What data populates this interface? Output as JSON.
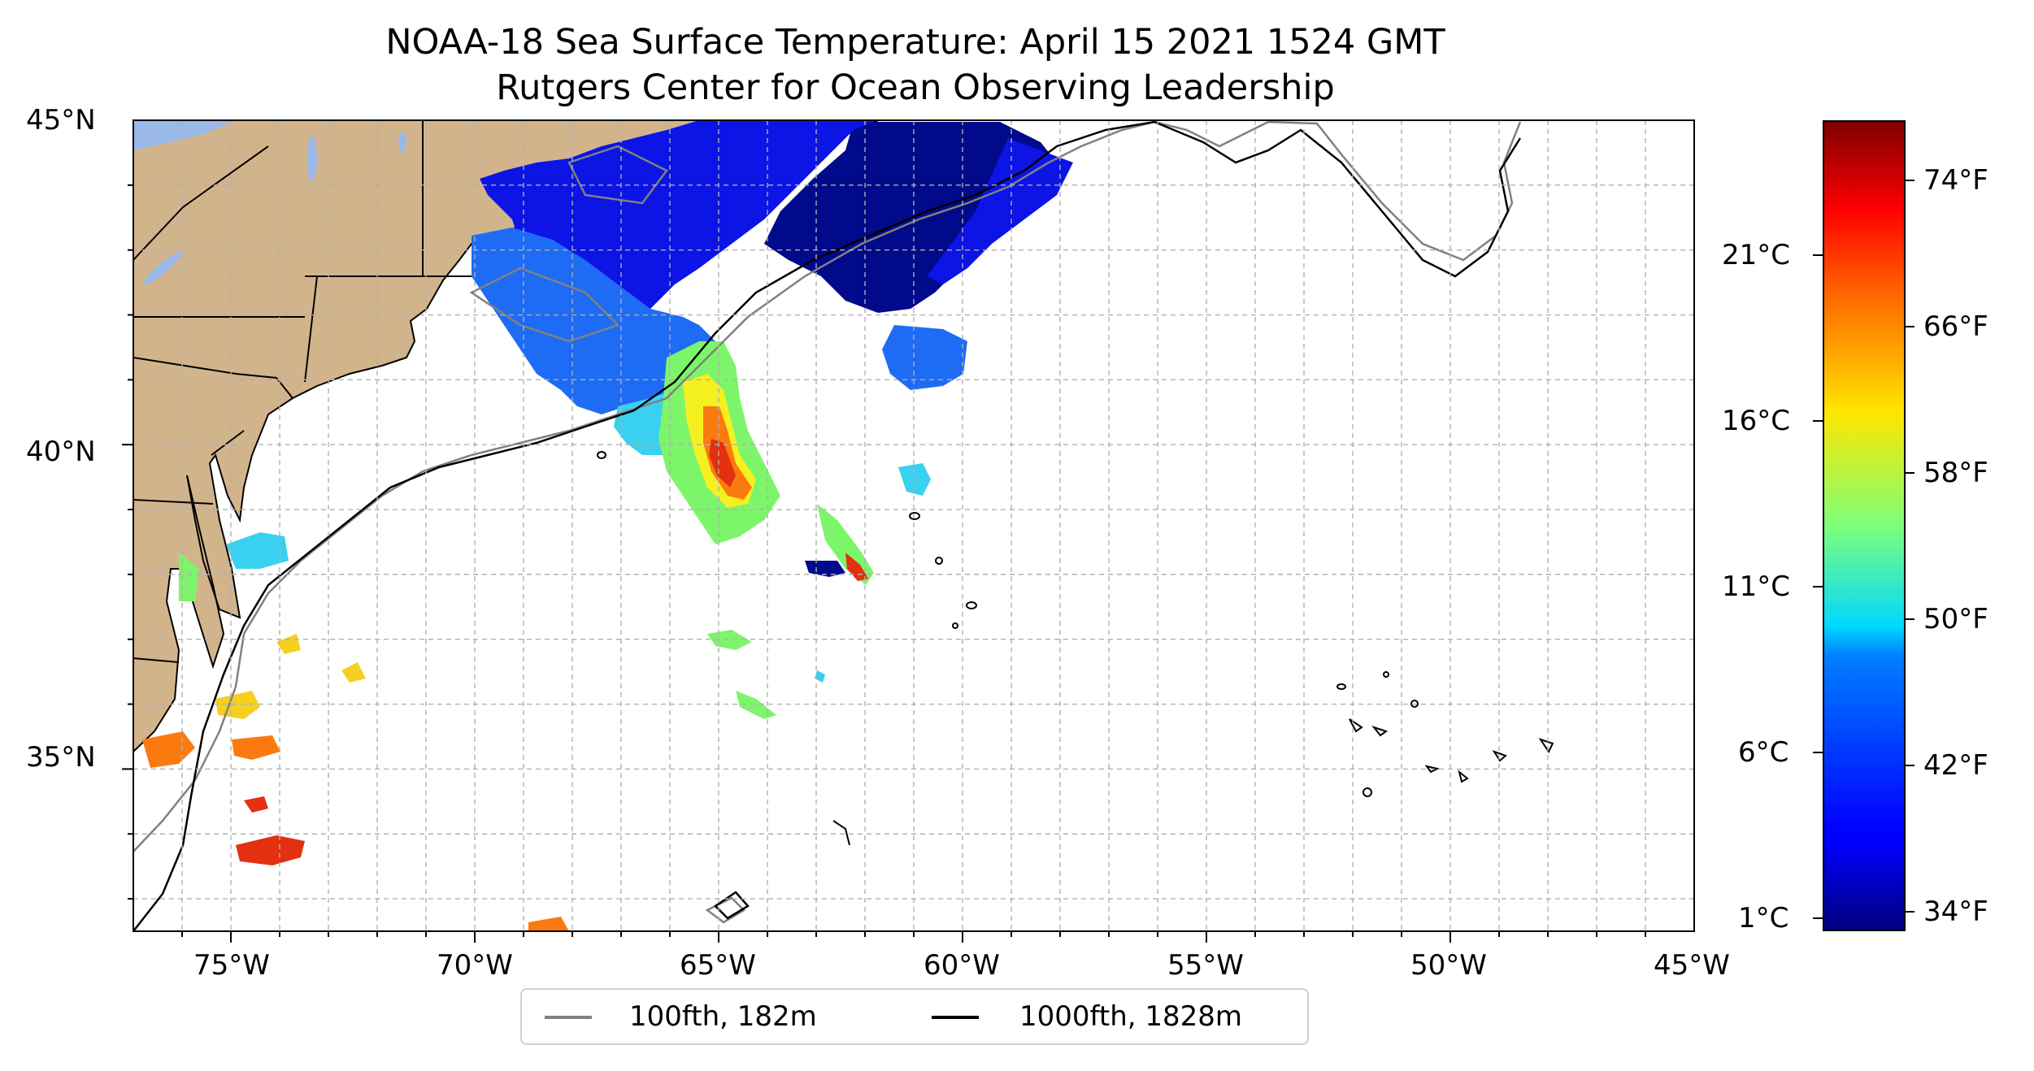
{
  "title_line1": "NOAA-18 Sea Surface Temperature: April 15 2021 1524 GMT",
  "title_line2": "Rutgers Center for Ocean Observing Leadership",
  "map": {
    "lon_range": [
      -77,
      -45
    ],
    "lat_range": [
      32.5,
      45
    ],
    "land_color": "#d2b48c",
    "lake_color": "#9ab8e8",
    "grid": true,
    "lon_ticks": [
      "75°W",
      "70°W",
      "65°W",
      "60°W",
      "55°W",
      "50°W",
      "45°W"
    ],
    "lat_ticks": [
      "45°N",
      "40°N",
      "35°N"
    ]
  },
  "colorbar": {
    "colormap": "jet",
    "celsius_ticks": [
      "21°C",
      "16°C",
      "11°C",
      "6°C",
      "1°C"
    ],
    "fahrenheit_ticks": [
      "74°F",
      "66°F",
      "58°F",
      "50°F",
      "42°F",
      "34°F"
    ]
  },
  "legend": {
    "items": [
      {
        "label": "100fth, 182m",
        "color": "#808080"
      },
      {
        "label": "1000fth, 1828m",
        "color": "#000000"
      }
    ]
  }
}
